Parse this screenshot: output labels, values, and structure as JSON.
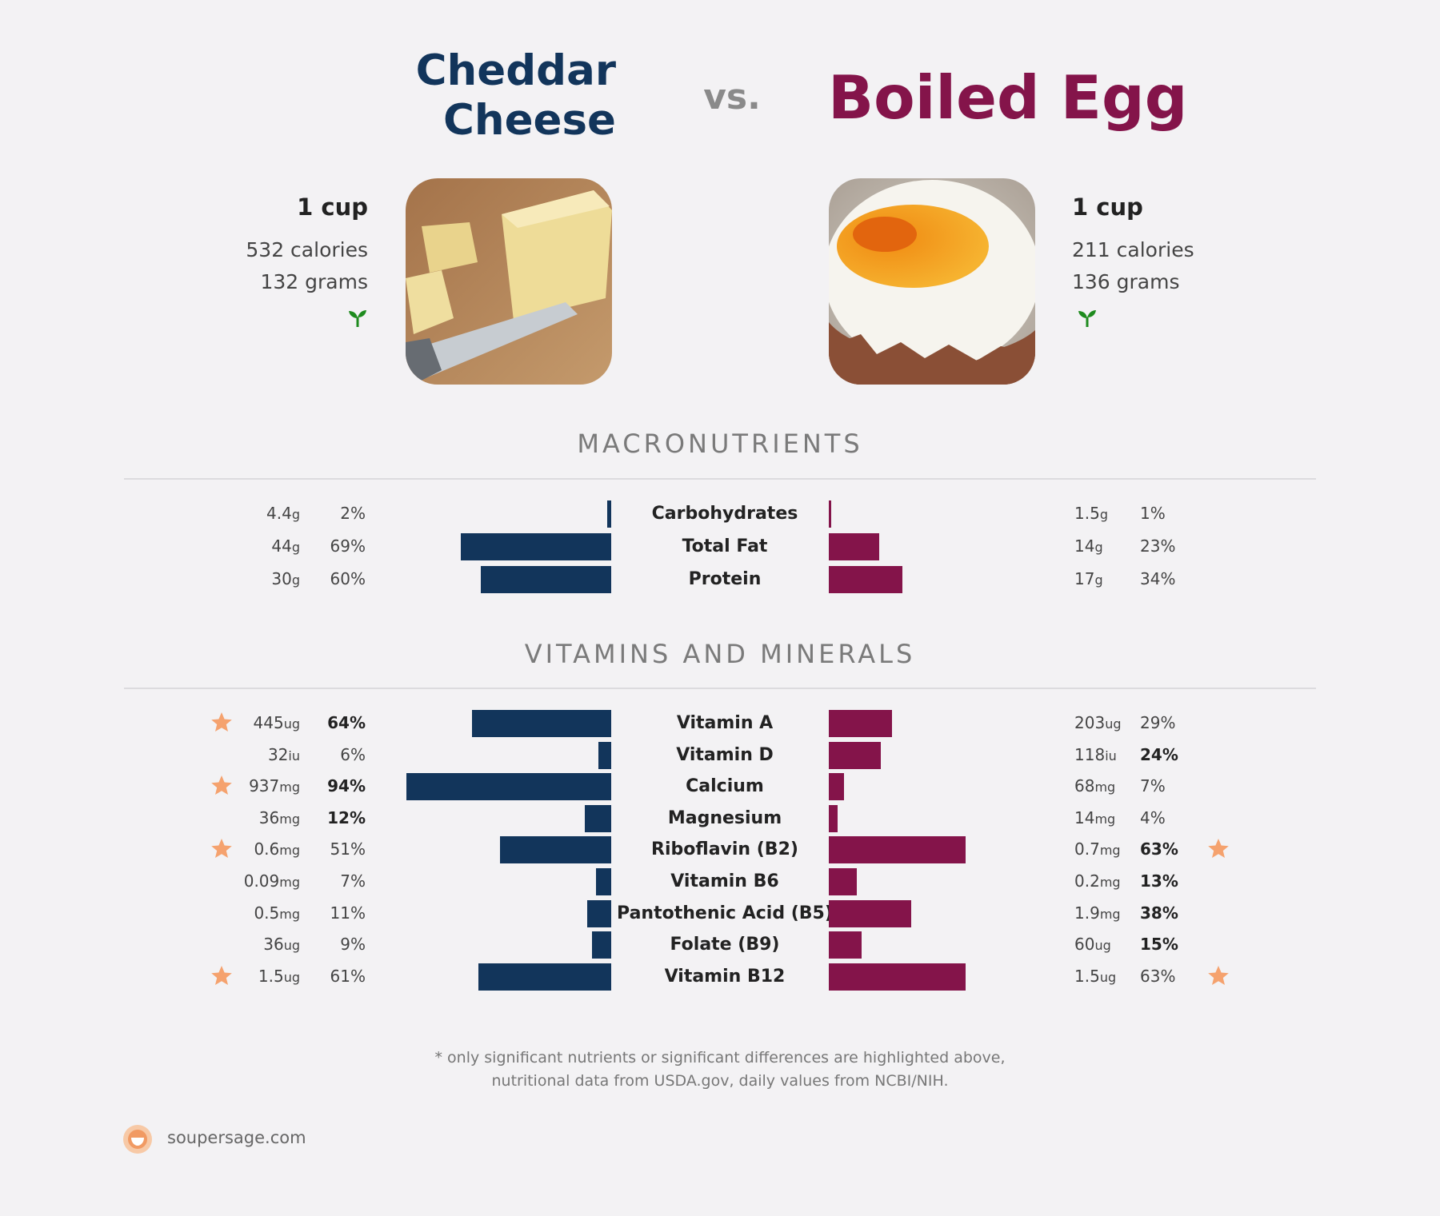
{
  "header": {
    "left_title_line1": "Cheddar",
    "left_title_line2": "Cheese",
    "vs": "vs.",
    "right_title": "Boiled Egg"
  },
  "left_food": {
    "serving": "1 cup",
    "calories": "532 calories",
    "grams": "132 grams",
    "badge_icon": "sprout-icon"
  },
  "right_food": {
    "serving": "1 cup",
    "calories": "211 calories",
    "grams": "136 grams",
    "badge_icon": "sprout-icon"
  },
  "colors": {
    "left": "#12355b",
    "right": "#84144a",
    "star": "#f5a26e",
    "sprout": "#1e8b1e"
  },
  "sections": {
    "macros_title": "MACRONUTRIENTS",
    "vitamins_title": "VITAMINS AND MINERALS"
  },
  "chart_data": [
    {
      "type": "bar",
      "categories": [
        "Carbohydrates",
        "Total Fat",
        "Protein"
      ],
      "series": [
        {
          "name": "Cheddar Cheese",
          "values": [
            2,
            69,
            60
          ],
          "amounts": [
            "4.4",
            "44",
            "30"
          ],
          "units": [
            "g",
            "g",
            "g"
          ],
          "pct_labels": [
            "2%",
            "69%",
            "60%"
          ],
          "bold": [
            false,
            false,
            false
          ],
          "star": [
            false,
            false,
            false
          ]
        },
        {
          "name": "Boiled Egg",
          "values": [
            1,
            23,
            34
          ],
          "amounts": [
            "1.5",
            "14",
            "17"
          ],
          "units": [
            "g",
            "g",
            "g"
          ],
          "pct_labels": [
            "1%",
            "23%",
            "34%"
          ],
          "bold": [
            false,
            false,
            false
          ],
          "star": [
            false,
            false,
            false
          ]
        }
      ]
    },
    {
      "type": "bar",
      "categories": [
        "Vitamin A",
        "Vitamin D",
        "Calcium",
        "Magnesium",
        "Riboflavin (B2)",
        "Vitamin B6",
        "Pantothenic Acid (B5)",
        "Folate (B9)",
        "Vitamin B12"
      ],
      "series": [
        {
          "name": "Cheddar Cheese",
          "values": [
            64,
            6,
            94,
            12,
            51,
            7,
            11,
            9,
            61
          ],
          "amounts": [
            "445",
            "32",
            "937",
            "36",
            "0.6",
            "0.09",
            "0.5",
            "36",
            "1.5"
          ],
          "units": [
            "ug",
            "iu",
            "mg",
            "mg",
            "mg",
            "mg",
            "mg",
            "ug",
            "ug"
          ],
          "pct_labels": [
            "64%",
            "6%",
            "94%",
            "12%",
            "51%",
            "7%",
            "11%",
            "9%",
            "61%"
          ],
          "bold": [
            true,
            false,
            true,
            true,
            false,
            false,
            false,
            false,
            false
          ],
          "star": [
            true,
            false,
            true,
            false,
            true,
            false,
            false,
            false,
            true
          ]
        },
        {
          "name": "Boiled Egg",
          "values": [
            29,
            24,
            7,
            4,
            63,
            13,
            38,
            15,
            63
          ],
          "amounts": [
            "203",
            "118",
            "68",
            "14",
            "0.7",
            "0.2",
            "1.9",
            "60",
            "1.5"
          ],
          "units": [
            "ug",
            "iu",
            "mg",
            "mg",
            "mg",
            "mg",
            "mg",
            "ug",
            "ug"
          ],
          "pct_labels": [
            "29%",
            "24%",
            "7%",
            "4%",
            "63%",
            "13%",
            "38%",
            "15%",
            "63%"
          ],
          "bold": [
            false,
            true,
            false,
            false,
            true,
            true,
            true,
            true,
            false
          ],
          "star": [
            false,
            false,
            false,
            false,
            true,
            false,
            false,
            false,
            true
          ]
        }
      ]
    }
  ],
  "footer": {
    "note_line1": "* only significant nutrients or significant differences are highlighted above,",
    "note_line2": "nutritional data from USDA.gov, daily values from NCBI/NIH.",
    "brand": "soupersage.com"
  }
}
